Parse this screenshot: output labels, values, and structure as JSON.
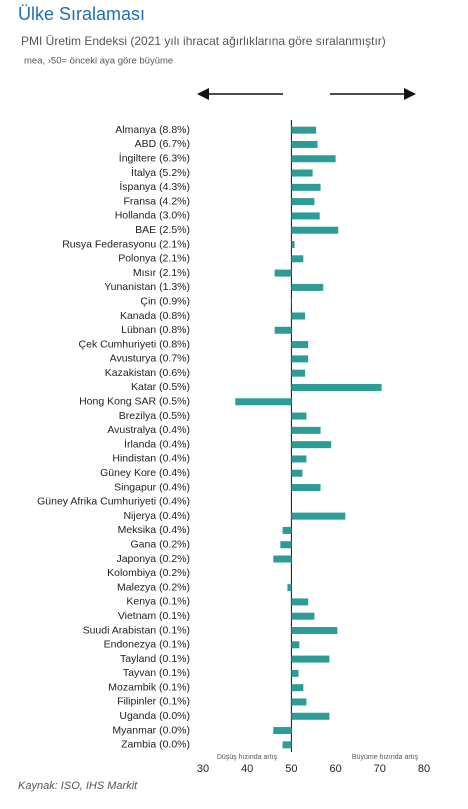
{
  "chart_data": {
    "type": "bar",
    "orientation": "horizontal",
    "title": "Ülke Sıralaması",
    "subtitle": "PMI Üretim Endeksi (2021 yılı ihracat ağırlıklarına göre sıralanmıştır)",
    "note": "mea, ›50= önceki aya göre büyüme",
    "left_label": "Düşüş hızında artış",
    "right_label": "Büyüme hızında artış",
    "source": "Kaynak: ISO, IHS Markit",
    "categories": [
      "Almanya (8.8%)",
      "ABD (6.7%)",
      "İngiltere (6.3%)",
      "İtalya (5.2%)",
      "İspanya (4.3%)",
      "Fransa (4.2%)",
      "Hollanda (3.0%)",
      "BAE (2.5%)",
      "Rusya Federasyonu (2.1%)",
      "Polonya (2.1%)",
      "Mısır (2.1%)",
      "Yunanistan (1.3%)",
      "Çin (0.9%)",
      "Kanada (0.8%)",
      "Lübnan (0.8%)",
      "Çek Cumhuriyeti (0.8%)",
      "Avusturya (0.7%)",
      "Kazakistan (0.6%)",
      "Katar (0.5%)",
      "Hong Kong SAR (0.5%)",
      "Brezilya (0.5%)",
      "Avustralya (0.4%)",
      "İrlanda (0.4%)",
      "Hindistan (0.4%)",
      "Güney Kore (0.4%)",
      "Singapur (0.4%)",
      "Güney Afrika Cumhuriyeti (0.4%)",
      "Nijerya (0.4%)",
      "Meksika (0.4%)",
      "Gana (0.2%)",
      "Japonya (0.2%)",
      "Kolombiya (0.2%)",
      "Malezya (0.2%)",
      "Kenya (0.1%)",
      "Vietnam (0.1%)",
      "Suudi Arabistan (0.1%)",
      "Endonezya (0.1%)",
      "Tayland (0.1%)",
      "Tayvan (0.1%)",
      "Mozambik (0.1%)",
      "Filipinler (0.1%)",
      "Uganda (0.0%)",
      "Myanmar (0.0%)",
      "Zambia (0.0%)"
    ],
    "values": [
      55.6,
      55.9,
      60.0,
      54.8,
      56.6,
      55.2,
      56.4,
      60.6,
      50.7,
      52.7,
      46.2,
      57.2,
      50.1,
      53.1,
      46.2,
      53.8,
      53.8,
      53.1,
      70.4,
      37.3,
      53.4,
      56.6,
      59.0,
      53.4,
      52.5,
      56.6,
      50.0,
      62.2,
      48.0,
      47.5,
      45.9,
      50.0,
      49.1,
      53.8,
      55.2,
      60.4,
      51.8,
      58.6,
      51.6,
      52.7,
      53.4,
      58.6,
      45.9,
      48.0
    ],
    "color": "#2e9c96",
    "baseline": 50,
    "xlim": [
      30,
      80
    ],
    "xticks": [
      30,
      40,
      50,
      60,
      70,
      80
    ]
  }
}
